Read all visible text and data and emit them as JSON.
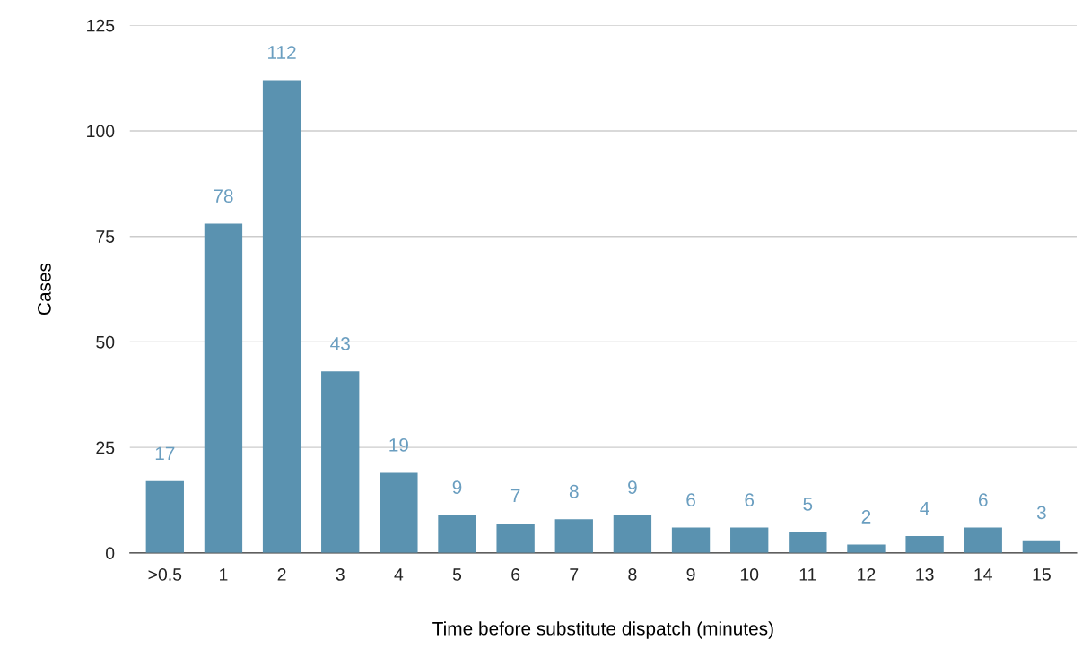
{
  "chart_data": {
    "type": "bar",
    "xlabel": "Time before substitute dispatch (minutes)",
    "ylabel": "Cases",
    "categories": [
      ">0.5",
      "1",
      "2",
      "3",
      "4",
      "5",
      "6",
      "7",
      "8",
      "9",
      "10",
      "11",
      "12",
      "13",
      "14",
      "15"
    ],
    "values": [
      17,
      78,
      112,
      43,
      19,
      9,
      7,
      8,
      9,
      6,
      6,
      5,
      2,
      4,
      6,
      3
    ],
    "color": "#5a92b0",
    "ylim": [
      0,
      125
    ],
    "yticks": [
      0,
      25,
      50,
      75,
      100,
      125
    ],
    "grid": "y",
    "data_labels": true
  }
}
